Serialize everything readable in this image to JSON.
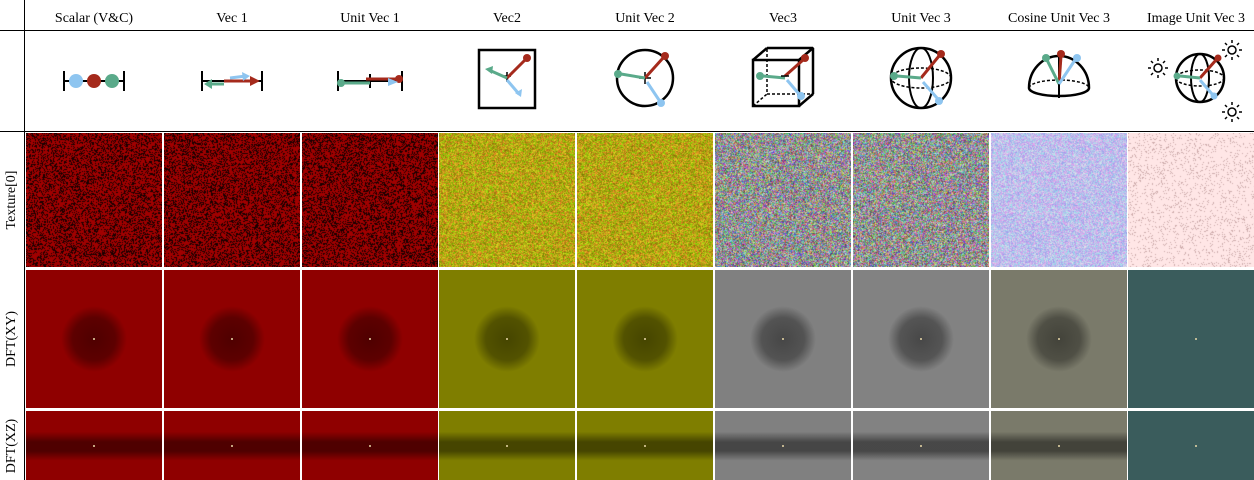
{
  "columns": [
    {
      "label": "Scalar (V&C)",
      "tint": "#a00000",
      "dft": "#8f0000"
    },
    {
      "label": "Vec 1",
      "tint": "#a00000",
      "dft": "#8f0000"
    },
    {
      "label": "Unit Vec 1",
      "tint": "#a00000",
      "dft": "#8f0000"
    },
    {
      "label": "Vec2",
      "tint": "#a8a000",
      "dft": "#7f7e00"
    },
    {
      "label": "Unit Vec 2",
      "tint": "#a8a000",
      "dft": "#7f7e00"
    },
    {
      "label": "Vec3",
      "tint": "#8c8c8c",
      "dft": "#808080"
    },
    {
      "label": "Unit Vec 3",
      "tint": "#8c8c8c",
      "dft": "#828282"
    },
    {
      "label": "Cosine Unit Vec 3",
      "tint": "#8888ee",
      "dft": "#7a7a6a"
    },
    {
      "label": "Image Unit Vec 3",
      "tint": "#f3e0e0",
      "dft": "#3a5c5c"
    }
  ],
  "rows": [
    {
      "label": "Texture[0]"
    },
    {
      "label": "DFT(XY)"
    },
    {
      "label": "DFT(XZ)"
    }
  ],
  "icons": [
    "scalar-icon",
    "vec1-icon",
    "unit-vec1-icon",
    "vec2-icon",
    "unit-vec2-icon",
    "vec3-icon",
    "unit-vec3-icon",
    "cosine-hemisphere-icon",
    "image-sphere-icon"
  ]
}
